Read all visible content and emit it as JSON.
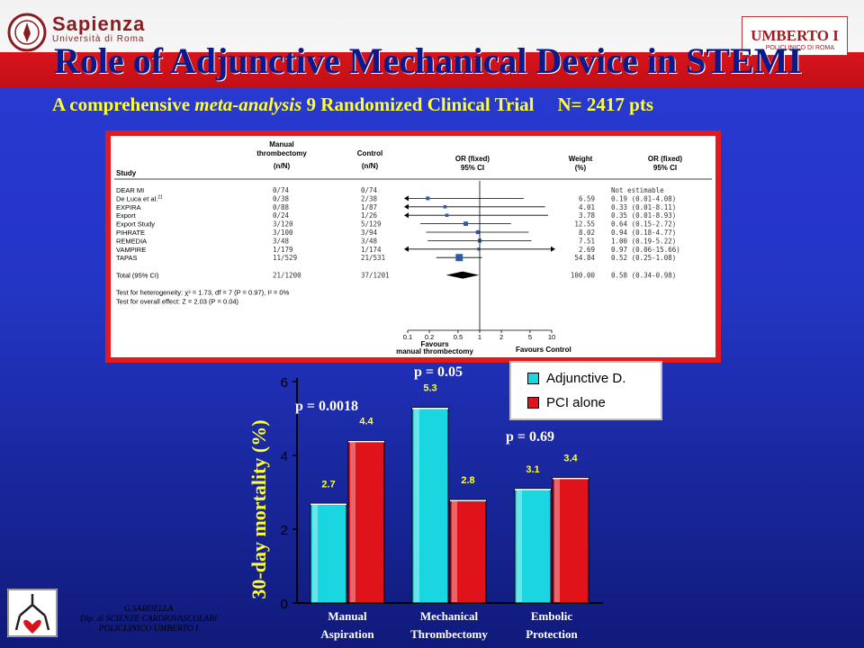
{
  "header": {
    "university_name": "Sapienza",
    "university_sub": "Università di Roma",
    "hospital_logo_text": "UMBERTO I",
    "hospital_logo_sub": "POLICLINICO DI ROMA"
  },
  "title": "Role of Adjunctive Mechanical Device in STEMI",
  "subtitle": {
    "part1": "A comprehensive ",
    "part_italic": "meta-analysis",
    "part2": " 9 Randomized Clinical Trial",
    "n": "N= 2417 pts"
  },
  "forest_plot": {
    "col_study": "Study",
    "col_manual": "Manual",
    "col_manual2": "thrombectomy",
    "col_manual_nn": "(n/N)",
    "col_control": "Control",
    "col_control_nn": "(n/N)",
    "col_or": "OR (fixed)",
    "col_or_ci": "95% CI",
    "col_weight": "Weight",
    "col_weight_pct": "(%)",
    "col_or2": "OR (fixed)",
    "col_or2_ci": "95% CI",
    "studies": [
      {
        "name": "DEAR MI",
        "manual": "0/74",
        "control": "0/74",
        "weight": "",
        "or": "Not estimable",
        "est": null,
        "lo": null,
        "hi": null
      },
      {
        "name": "De Luca et al.",
        "sup": "21",
        "manual": "0/38",
        "control": "2/38",
        "weight": "6.59",
        "or": "0.19 (0.01-4.08)",
        "est": 0.19,
        "lo": 0.01,
        "hi": 4.08
      },
      {
        "name": "EXPIRA",
        "manual": "0/88",
        "control": "1/87",
        "weight": "4.01",
        "or": "0.33 (0.01-8.11)",
        "est": 0.33,
        "lo": 0.01,
        "hi": 8.11
      },
      {
        "name": "Export",
        "manual": "0/24",
        "control": "1/26",
        "weight": "3.78",
        "or": "0.35 (0.01-8.93)",
        "est": 0.35,
        "lo": 0.01,
        "hi": 8.93
      },
      {
        "name": "Export Study",
        "manual": "3/120",
        "control": "5/129",
        "weight": "12.55",
        "or": "0.64 (0.15-2.72)",
        "est": 0.64,
        "lo": 0.15,
        "hi": 2.72
      },
      {
        "name": "PIHRATE",
        "manual": "3/100",
        "control": "3/94",
        "weight": "8.02",
        "or": "0.94 (0.18-4.77)",
        "est": 0.94,
        "lo": 0.18,
        "hi": 4.77
      },
      {
        "name": "REMEDIA",
        "manual": "3/48",
        "control": "3/48",
        "weight": "7.51",
        "or": "1.00 (0.19-5.22)",
        "est": 1.0,
        "lo": 0.19,
        "hi": 5.22
      },
      {
        "name": "VAMPIRE",
        "manual": "1/179",
        "control": "1/174",
        "weight": "2.69",
        "or": "0.97 (0.06-15.66)",
        "est": 0.97,
        "lo": 0.06,
        "hi": 15.66
      },
      {
        "name": "TAPAS",
        "manual": "11/529",
        "control": "21/531",
        "weight": "54.84",
        "or": "0.52 (0.25-1.08)",
        "est": 0.52,
        "lo": 0.25,
        "hi": 1.08
      }
    ],
    "total": {
      "name": "Total (95% CI)",
      "manual": "21/1200",
      "control": "37/1201",
      "weight": "100.00",
      "or": "0.58 (0.34-0.98)",
      "est": 0.58,
      "lo": 0.34,
      "hi": 0.98
    },
    "heterogeneity": "Test for heterogeneity: χ² = 1.73, df = 7 (P = 0.97), I² = 0%",
    "overall": "Test for overall effect: Z = 2.03 (P = 0.04)",
    "axis_ticks": [
      "0.1",
      "0.2",
      "0.5",
      "1",
      "2",
      "5",
      "10"
    ],
    "axis_tick_values": [
      0.1,
      0.2,
      0.5,
      1,
      2,
      5,
      10
    ],
    "favours_left": "Favours",
    "favours_left2": "manual thrombectomy",
    "favours_right": "Favours Control"
  },
  "chart_data": {
    "type": "bar",
    "categories": [
      [
        "Manual",
        "Aspiration"
      ],
      [
        "Mechanical",
        "Thrombectomy"
      ],
      [
        "Embolic",
        "Protection"
      ]
    ],
    "series": [
      {
        "name": "Adjunctive D.",
        "values": [
          2.7,
          5.3,
          3.1
        ],
        "labels": [
          "2.7",
          "5.3",
          "3.1"
        ],
        "color": "#19d6e0"
      },
      {
        "name": "PCI alone",
        "values": [
          4.4,
          2.8,
          3.4
        ],
        "labels": [
          "4.4",
          "2.8",
          "3.4"
        ],
        "color": "#e0121a"
      }
    ],
    "ylabel": "30-day mortality (%)",
    "ylim": [
      0,
      6
    ],
    "yticks": [
      0,
      2,
      4,
      6
    ],
    "p_values": [
      "p = 0.0018",
      "p = 0.05",
      "p = 0.69"
    ],
    "legend_position": "top-right",
    "grid": false
  },
  "credits": {
    "line1": "G.SARDELLA",
    "line2": "Dip. di SCIENZE CARDIOVASCOLARI",
    "line3": "POLICLINICO UMBERTO I"
  },
  "colors": {
    "background": "#2335c4",
    "title": "#0a1a8c",
    "subtitle": "#ffff33",
    "red": "#d8141b"
  }
}
